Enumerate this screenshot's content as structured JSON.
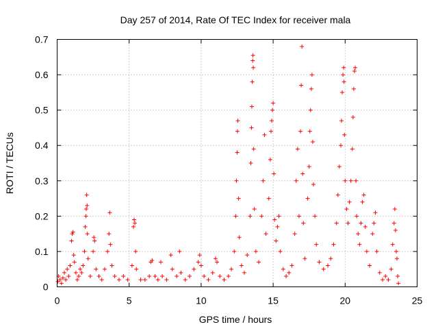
{
  "chart_data": {
    "type": "scatter",
    "title": "Day 257 of 2014, Rate Of TEC Index for receiver mala",
    "xlabel": "GPS time / hours",
    "ylabel": "ROTI / TECUs",
    "xlim": [
      0,
      25
    ],
    "ylim": [
      0,
      0.7
    ],
    "xticks": [
      0,
      5,
      10,
      15,
      20,
      25
    ],
    "xtick_labels": [
      "0",
      "5",
      "10",
      "15",
      "20",
      "25"
    ],
    "yticks": [
      0,
      0.1,
      0.2,
      0.3,
      0.4,
      0.5,
      0.6,
      0.7
    ],
    "ytick_labels": [
      "0",
      "0.1",
      "0.2",
      "0.3",
      "0.4",
      "0.5",
      "0.6",
      "0.7"
    ],
    "grid": true,
    "marker": "+",
    "marker_color": "#ff0000",
    "series": [
      {
        "name": "ROTI",
        "points": [
          [
            0.05,
            0.015
          ],
          [
            0.1,
            0.03
          ],
          [
            0.2,
            0.02
          ],
          [
            0.3,
            0.01
          ],
          [
            0.4,
            0.025
          ],
          [
            0.5,
            0.04
          ],
          [
            0.6,
            0.02
          ],
          [
            0.7,
            0.05
          ],
          [
            0.8,
            0.03
          ],
          [
            0.9,
            0.06
          ],
          [
            1.0,
            0.13
          ],
          [
            1.05,
            0.15
          ],
          [
            1.1,
            0.155
          ],
          [
            1.15,
            0.09
          ],
          [
            1.2,
            0.07
          ],
          [
            1.3,
            0.04
          ],
          [
            1.4,
            0.02
          ],
          [
            1.5,
            0.03
          ],
          [
            1.6,
            0.05
          ],
          [
            1.7,
            0.04
          ],
          [
            1.8,
            0.06
          ],
          [
            1.9,
            0.1
          ],
          [
            1.95,
            0.17
          ],
          [
            2.0,
            0.2
          ],
          [
            2.02,
            0.22
          ],
          [
            2.05,
            0.26
          ],
          [
            2.08,
            0.23
          ],
          [
            2.1,
            0.15
          ],
          [
            2.15,
            0.08
          ],
          [
            2.3,
            0.03
          ],
          [
            2.5,
            0.1
          ],
          [
            2.55,
            0.14
          ],
          [
            2.6,
            0.13
          ],
          [
            2.7,
            0.05
          ],
          [
            2.9,
            0.03
          ],
          [
            3.1,
            0.02
          ],
          [
            3.3,
            0.05
          ],
          [
            3.5,
            0.1
          ],
          [
            3.6,
            0.15
          ],
          [
            3.65,
            0.21
          ],
          [
            3.7,
            0.12
          ],
          [
            3.8,
            0.06
          ],
          [
            4.0,
            0.03
          ],
          [
            4.3,
            0.02
          ],
          [
            4.6,
            0.03
          ],
          [
            4.9,
            0.02
          ],
          [
            5.2,
            0.06
          ],
          [
            5.3,
            0.17
          ],
          [
            5.35,
            0.19
          ],
          [
            5.4,
            0.18
          ],
          [
            5.45,
            0.1
          ],
          [
            5.5,
            0.05
          ],
          [
            5.8,
            0.02
          ],
          [
            6.1,
            0.02
          ],
          [
            6.4,
            0.03
          ],
          [
            6.5,
            0.07
          ],
          [
            6.6,
            0.075
          ],
          [
            6.8,
            0.03
          ],
          [
            7.0,
            0.02
          ],
          [
            7.2,
            0.07
          ],
          [
            7.3,
            0.03
          ],
          [
            7.6,
            0.02
          ],
          [
            7.9,
            0.09
          ],
          [
            8.0,
            0.05
          ],
          [
            8.3,
            0.03
          ],
          [
            8.5,
            0.1
          ],
          [
            8.6,
            0.04
          ],
          [
            8.9,
            0.02
          ],
          [
            9.2,
            0.03
          ],
          [
            9.5,
            0.05
          ],
          [
            9.8,
            0.07
          ],
          [
            9.9,
            0.09
          ],
          [
            10.0,
            0.06
          ],
          [
            10.2,
            0.03
          ],
          [
            10.5,
            0.02
          ],
          [
            10.8,
            0.04
          ],
          [
            11.0,
            0.08
          ],
          [
            11.1,
            0.07
          ],
          [
            11.3,
            0.03
          ],
          [
            11.6,
            0.02
          ],
          [
            11.9,
            0.03
          ],
          [
            12.1,
            0.05
          ],
          [
            12.3,
            0.1
          ],
          [
            12.4,
            0.2
          ],
          [
            12.45,
            0.3
          ],
          [
            12.5,
            0.38
          ],
          [
            12.52,
            0.44
          ],
          [
            12.55,
            0.47
          ],
          [
            12.6,
            0.25
          ],
          [
            12.65,
            0.14
          ],
          [
            12.8,
            0.06
          ],
          [
            13.0,
            0.04
          ],
          [
            13.2,
            0.09
          ],
          [
            13.4,
            0.2
          ],
          [
            13.45,
            0.35
          ],
          [
            13.5,
            0.45
          ],
          [
            13.52,
            0.51
          ],
          [
            13.55,
            0.58
          ],
          [
            13.58,
            0.64
          ],
          [
            13.6,
            0.655
          ],
          [
            13.62,
            0.62
          ],
          [
            13.65,
            0.39
          ],
          [
            13.7,
            0.22
          ],
          [
            13.8,
            0.1
          ],
          [
            14.0,
            0.07
          ],
          [
            14.2,
            0.2
          ],
          [
            14.3,
            0.3
          ],
          [
            14.4,
            0.43
          ],
          [
            14.5,
            0.15
          ],
          [
            14.7,
            0.25
          ],
          [
            14.8,
            0.36
          ],
          [
            14.85,
            0.44
          ],
          [
            14.9,
            0.47
          ],
          [
            14.95,
            0.5
          ],
          [
            15.0,
            0.52
          ],
          [
            15.05,
            0.32
          ],
          [
            15.1,
            0.19
          ],
          [
            15.2,
            0.13
          ],
          [
            15.3,
            0.17
          ],
          [
            15.4,
            0.2
          ],
          [
            15.5,
            0.1
          ],
          [
            15.7,
            0.05
          ],
          [
            15.9,
            0.03
          ],
          [
            16.1,
            0.04
          ],
          [
            16.3,
            0.06
          ],
          [
            16.5,
            0.15
          ],
          [
            16.6,
            0.3
          ],
          [
            16.7,
            0.39
          ],
          [
            16.8,
            0.2
          ],
          [
            16.9,
            0.44
          ],
          [
            16.95,
            0.57
          ],
          [
            17.0,
            0.68
          ],
          [
            17.05,
            0.32
          ],
          [
            17.1,
            0.18
          ],
          [
            17.2,
            0.08
          ],
          [
            17.4,
            0.25
          ],
          [
            17.5,
            0.34
          ],
          [
            17.55,
            0.44
          ],
          [
            17.6,
            0.5
          ],
          [
            17.65,
            0.56
          ],
          [
            17.7,
            0.6
          ],
          [
            17.75,
            0.41
          ],
          [
            17.8,
            0.29
          ],
          [
            17.9,
            0.2
          ],
          [
            18.0,
            0.12
          ],
          [
            18.2,
            0.07
          ],
          [
            18.5,
            0.05
          ],
          [
            18.8,
            0.06
          ],
          [
            19.0,
            0.08
          ],
          [
            19.2,
            0.12
          ],
          [
            19.4,
            0.18
          ],
          [
            19.5,
            0.26
          ],
          [
            19.6,
            0.34
          ],
          [
            19.7,
            0.4
          ],
          [
            19.75,
            0.47
          ],
          [
            19.8,
            0.55
          ],
          [
            19.85,
            0.6
          ],
          [
            19.9,
            0.62
          ],
          [
            19.92,
            0.58
          ],
          [
            19.95,
            0.43
          ],
          [
            20.0,
            0.3
          ],
          [
            20.1,
            0.22
          ],
          [
            20.2,
            0.18
          ],
          [
            20.3,
            0.24
          ],
          [
            20.4,
            0.3
          ],
          [
            20.5,
            0.39
          ],
          [
            20.55,
            0.48
          ],
          [
            20.6,
            0.56
          ],
          [
            20.65,
            0.61
          ],
          [
            20.7,
            0.62
          ],
          [
            20.75,
            0.3
          ],
          [
            20.8,
            0.2
          ],
          [
            20.9,
            0.15
          ],
          [
            21.0,
            0.12
          ],
          [
            21.1,
            0.18
          ],
          [
            21.2,
            0.24
          ],
          [
            21.3,
            0.26
          ],
          [
            21.4,
            0.17
          ],
          [
            21.5,
            0.1
          ],
          [
            21.7,
            0.06
          ],
          [
            21.9,
            0.15
          ],
          [
            22.0,
            0.18
          ],
          [
            22.1,
            0.21
          ],
          [
            22.2,
            0.1
          ],
          [
            22.4,
            0.04
          ],
          [
            22.6,
            0.02
          ],
          [
            22.8,
            0.03
          ],
          [
            23.0,
            0.02
          ],
          [
            23.2,
            0.05
          ],
          [
            23.3,
            0.12
          ],
          [
            23.4,
            0.18
          ],
          [
            23.45,
            0.22
          ],
          [
            23.5,
            0.16
          ],
          [
            23.55,
            0.1
          ],
          [
            23.6,
            0.08
          ],
          [
            23.65,
            0.03
          ],
          [
            23.7,
            0.01
          ]
        ]
      }
    ]
  }
}
